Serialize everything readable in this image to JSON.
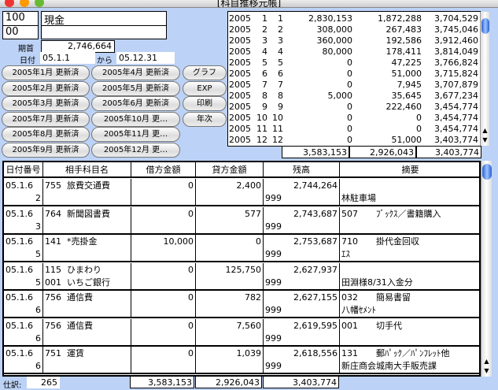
{
  "window": {
    "title": "[科目推移元帳]"
  },
  "account": {
    "code": "100",
    "name": "現金",
    "sub_code": "00",
    "sub_name": ""
  },
  "opening": {
    "label": "期首",
    "value": "2,746,664"
  },
  "date_range": {
    "label": "日付",
    "from": "05.1.1",
    "sep": "から",
    "to": "05.12.31"
  },
  "month_buttons": [
    "2005年1月 更新済",
    "2005年4月 更新済",
    "2005年2月 更新済",
    "2005年5月 更新済",
    "2005年3月 更新済",
    "2005年6月 更新済",
    "2005年7月 更新済",
    "2005年10月 更…",
    "2005年8月 更新済",
    "2005年11月 更…",
    "2005年9月 更新済",
    "2005年12月 更…"
  ],
  "action_buttons": [
    "グラフ",
    "EXP",
    "印刷",
    "年次"
  ],
  "monthly": {
    "rows": [
      [
        "2005",
        "1",
        "1",
        "2,830,153",
        "1,872,288",
        "3,704,529"
      ],
      [
        "2005",
        "2",
        "2",
        "308,000",
        "267,483",
        "3,745,046"
      ],
      [
        "2005",
        "3",
        "3",
        "360,000",
        "192,586",
        "3,912,460"
      ],
      [
        "2005",
        "4",
        "4",
        "80,000",
        "178,411",
        "3,814,049"
      ],
      [
        "2005",
        "5",
        "5",
        "0",
        "47,225",
        "3,766,824"
      ],
      [
        "2005",
        "6",
        "6",
        "0",
        "51,000",
        "3,715,824"
      ],
      [
        "2005",
        "7",
        "7",
        "0",
        "7,945",
        "3,707,879"
      ],
      [
        "2005",
        "8",
        "8",
        "5,000",
        "35,645",
        "3,677,234"
      ],
      [
        "2005",
        "9",
        "9",
        "0",
        "222,460",
        "3,454,774"
      ],
      [
        "2005",
        "10",
        "10",
        "0",
        "0",
        "3,454,774"
      ],
      [
        "2005",
        "11",
        "11",
        "0",
        "0",
        "3,454,774"
      ],
      [
        "2005",
        "12",
        "12",
        "0",
        "51,000",
        "3,403,774"
      ]
    ],
    "totals": [
      "3,583,153",
      "2,926,043",
      "3,403,774"
    ]
  },
  "ledger": {
    "headers": [
      "日付番号",
      "相手科目名",
      "借方金額",
      "貸方金額",
      "残高",
      "摘要"
    ],
    "rows": [
      {
        "date": "05.1.6",
        "no": "2",
        "code": "755",
        "name": "旅費交通費",
        "code2": "",
        "name2": "",
        "debit": "0",
        "credit": "2,400",
        "balance": "2,744,264",
        "bcode": "999",
        "mcode": "",
        "memo": "",
        "memo2": "林駐車場"
      },
      {
        "date": "05.1.6",
        "no": "3",
        "code": "764",
        "name": "新聞図書費",
        "code2": "",
        "name2": "",
        "debit": "0",
        "credit": "577",
        "balance": "2,743,687",
        "bcode": "999",
        "mcode": "507",
        "memo": "ﾌﾞｯｸｽ／書籍購入",
        "memo2": ""
      },
      {
        "date": "05.1.6",
        "no": "5",
        "code": "141",
        "name": "*売掛金",
        "code2": "",
        "name2": "",
        "debit": "10,000",
        "credit": "0",
        "balance": "2,753,687",
        "bcode": "999",
        "mcode": "710",
        "memo": "掛代金回収",
        "memo2": "ｴｽ"
      },
      {
        "date": "05.1.6",
        "no": "5",
        "code": "115",
        "name": "ひまわり",
        "code2": "001",
        "name2": "いちご銀行",
        "debit": "0",
        "credit": "125,750",
        "balance": "2,627,937",
        "bcode": "999",
        "mcode": "",
        "memo": "",
        "memo2": "田淵様8/31入金分"
      },
      {
        "date": "05.1.6",
        "no": "6",
        "code": "756",
        "name": "通信費",
        "code2": "",
        "name2": "",
        "debit": "0",
        "credit": "782",
        "balance": "2,627,155",
        "bcode": "999",
        "mcode": "032",
        "memo": "簡易書留",
        "memo2": "八幡ｾﾒﾝﾄ"
      },
      {
        "date": "05.1.6",
        "no": "6",
        "code": "756",
        "name": "通信費",
        "code2": "",
        "name2": "",
        "debit": "0",
        "credit": "7,560",
        "balance": "2,619,595",
        "bcode": "999",
        "mcode": "001",
        "memo": "切手代",
        "memo2": ""
      },
      {
        "date": "05.1.6",
        "no": "6",
        "code": "751",
        "name": "運賃",
        "code2": "",
        "name2": "",
        "debit": "0",
        "credit": "1,039",
        "balance": "2,618,556",
        "bcode": "999",
        "mcode": "131",
        "memo": "郵ﾊﾟｯｸ／ﾊﾟﾝﾌﾚｯﾄ他",
        "memo2": "新庄商会城南大手販売課"
      }
    ]
  },
  "footer": {
    "count_label": "仕訳:",
    "count": "265",
    "totals": [
      "3,583,153",
      "2,926,043",
      "3,403,774"
    ]
  }
}
